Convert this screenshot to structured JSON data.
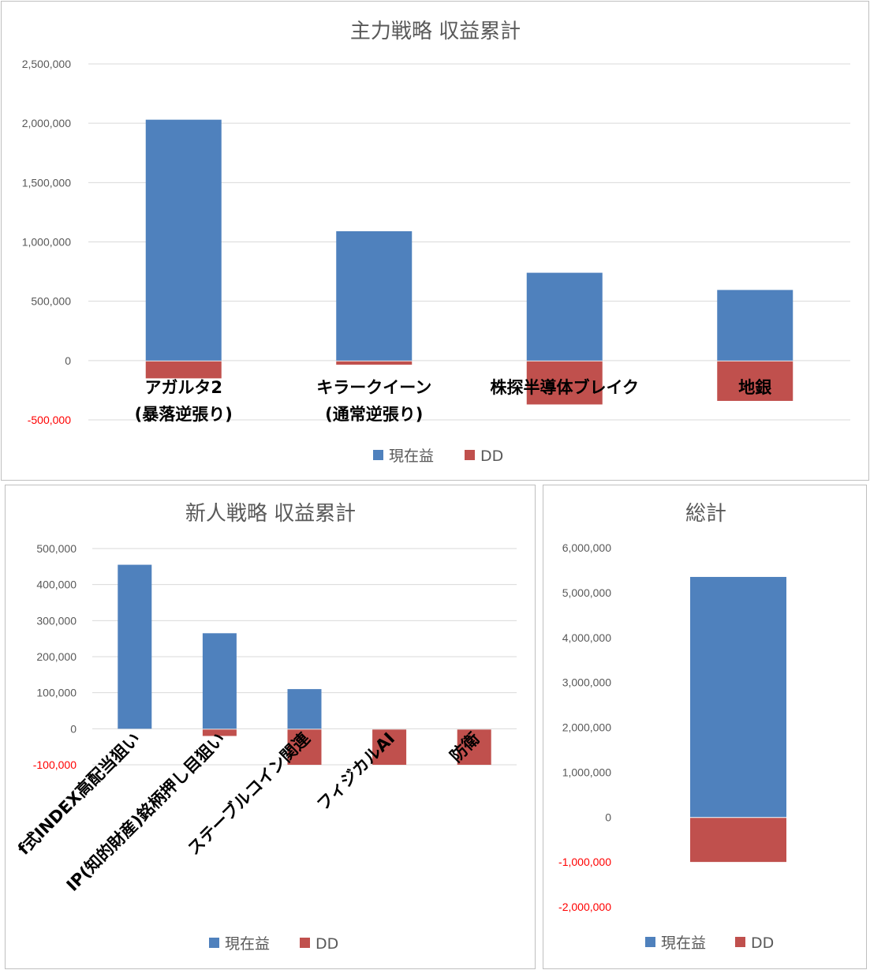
{
  "colors": {
    "series_current": "#4f81bd",
    "series_dd": "#c0504d",
    "grid": "#d9d9d9",
    "negative_tick": "#ff0000"
  },
  "legend": {
    "current_label": "現在益",
    "dd_label": "DD"
  },
  "chart_data": [
    {
      "type": "bar",
      "title": "主力戦略 収益累計",
      "categories": [
        [
          "アガルタ2",
          "(暴落逆張り)"
        ],
        [
          "キラークイーン",
          "(通常逆張り)"
        ],
        [
          "株探半導体ブレイク"
        ],
        [
          "地銀"
        ]
      ],
      "series": [
        {
          "name": "現在益",
          "values": [
            2030000,
            1090000,
            740000,
            595000
          ]
        },
        {
          "name": "DD",
          "values": [
            -150000,
            -35000,
            -370000,
            -340000
          ]
        }
      ],
      "ylim": [
        -500000,
        2500000
      ],
      "yticks": [
        {
          "value": 2500000,
          "label": "2,500,000"
        },
        {
          "value": 2000000,
          "label": "2,000,000"
        },
        {
          "value": 1500000,
          "label": "1,500,000"
        },
        {
          "value": 1000000,
          "label": "1,000,000"
        },
        {
          "value": 500000,
          "label": "500,000"
        },
        {
          "value": 0,
          "label": "0"
        },
        {
          "value": -500000,
          "label": "-500,000"
        }
      ],
      "grid": true,
      "legend_position": "bottom"
    },
    {
      "type": "bar",
      "title": "新人戦略 収益累計",
      "categories": [
        [
          "f式INDEX高配当狙い"
        ],
        [
          "IP(知的財産)銘柄押し目狙い"
        ],
        [
          "ステーブルコイン関連"
        ],
        [
          "フィジカルAI"
        ],
        [
          "防衛"
        ]
      ],
      "series": [
        {
          "name": "現在益",
          "values": [
            455000,
            265000,
            110000,
            0,
            0
          ]
        },
        {
          "name": "DD",
          "values": [
            0,
            -20000,
            -100000,
            -100000,
            -100000
          ]
        }
      ],
      "ylim": [
        -100000,
        500000
      ],
      "yticks": [
        {
          "value": 500000,
          "label": "500,000"
        },
        {
          "value": 400000,
          "label": "400,000"
        },
        {
          "value": 300000,
          "label": "300,000"
        },
        {
          "value": 200000,
          "label": "200,000"
        },
        {
          "value": 100000,
          "label": "100,000"
        },
        {
          "value": 0,
          "label": "0"
        },
        {
          "value": -100000,
          "label": "-100,000"
        }
      ],
      "grid": true,
      "legend_position": "bottom"
    },
    {
      "type": "bar",
      "title": "総計",
      "categories": [
        [
          ""
        ]
      ],
      "series": [
        {
          "name": "現在益",
          "values": [
            5350000
          ]
        },
        {
          "name": "DD",
          "values": [
            -1000000
          ]
        }
      ],
      "ylim": [
        -2000000,
        6000000
      ],
      "yticks": [
        {
          "value": 6000000,
          "label": "6,000,000"
        },
        {
          "value": 5000000,
          "label": "5,000,000"
        },
        {
          "value": 4000000,
          "label": "4,000,000"
        },
        {
          "value": 3000000,
          "label": "3,000,000"
        },
        {
          "value": 2000000,
          "label": "2,000,000"
        },
        {
          "value": 1000000,
          "label": "1,000,000"
        },
        {
          "value": 0,
          "label": "0"
        },
        {
          "value": -1000000,
          "label": "-1,000,000"
        },
        {
          "value": -2000000,
          "label": "-2,000,000"
        }
      ],
      "grid": false,
      "legend_position": "bottom"
    }
  ]
}
